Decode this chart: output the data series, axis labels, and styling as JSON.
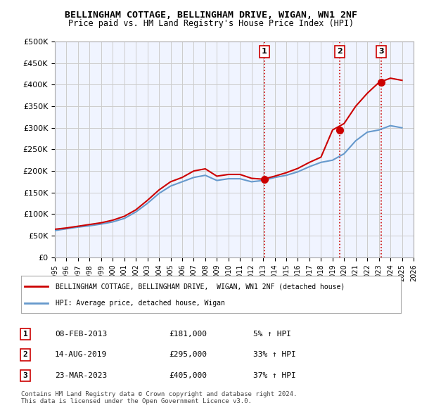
{
  "title": "BELLINGHAM COTTAGE, BELLINGHAM DRIVE, WIGAN, WN1 2NF",
  "subtitle": "Price paid vs. HM Land Registry's House Price Index (HPI)",
  "background_color": "#ffffff",
  "plot_bg_color": "#f0f4ff",
  "grid_color": "#cccccc",
  "ylim": [
    0,
    500000
  ],
  "yticks": [
    0,
    50000,
    100000,
    150000,
    200000,
    250000,
    300000,
    350000,
    400000,
    450000,
    500000
  ],
  "ytick_labels": [
    "£0",
    "£50K",
    "£100K",
    "£150K",
    "£200K",
    "£250K",
    "£300K",
    "£350K",
    "£400K",
    "£450K",
    "£500K"
  ],
  "xmin": 1995,
  "xmax": 2026,
  "sale_dates": [
    2013.1,
    2019.6,
    2023.2
  ],
  "sale_prices": [
    181000,
    295000,
    405000
  ],
  "sale_labels": [
    "1",
    "2",
    "3"
  ],
  "vline_color": "#cc0000",
  "vline_style": "dotted",
  "sale_marker_color": "#cc0000",
  "hpi_line_color": "#6699cc",
  "property_line_color": "#cc0000",
  "legend_label_property": "BELLINGHAM COTTAGE, BELLINGHAM DRIVE,  WIGAN, WN1 2NF (detached house)",
  "legend_label_hpi": "HPI: Average price, detached house, Wigan",
  "table_rows": [
    [
      "1",
      "08-FEB-2013",
      "£181,000",
      "5% ↑ HPI"
    ],
    [
      "2",
      "14-AUG-2019",
      "£295,000",
      "33% ↑ HPI"
    ],
    [
      "3",
      "23-MAR-2023",
      "£405,000",
      "37% ↑ HPI"
    ]
  ],
  "footer": "Contains HM Land Registry data © Crown copyright and database right 2024.\nThis data is licensed under the Open Government Licence v3.0.",
  "hpi_years": [
    1995,
    1996,
    1997,
    1998,
    1999,
    2000,
    2001,
    2002,
    2003,
    2004,
    2005,
    2006,
    2007,
    2008,
    2009,
    2010,
    2011,
    2012,
    2013,
    2014,
    2015,
    2016,
    2017,
    2018,
    2019,
    2020,
    2021,
    2022,
    2023,
    2024,
    2025
  ],
  "hpi_values": [
    62000,
    66000,
    70000,
    73000,
    77000,
    82000,
    90000,
    105000,
    125000,
    148000,
    165000,
    175000,
    185000,
    190000,
    178000,
    182000,
    182000,
    175000,
    178000,
    185000,
    190000,
    198000,
    210000,
    220000,
    225000,
    240000,
    270000,
    290000,
    295000,
    305000,
    300000
  ],
  "prop_years": [
    1995,
    1996,
    1997,
    1998,
    1999,
    2000,
    2001,
    2002,
    2003,
    2004,
    2005,
    2006,
    2007,
    2008,
    2009,
    2010,
    2011,
    2012,
    2013,
    2014,
    2015,
    2016,
    2017,
    2018,
    2019,
    2020,
    2021,
    2022,
    2023,
    2024,
    2025
  ],
  "prop_values": [
    65000,
    68000,
    72000,
    76000,
    80000,
    86000,
    95000,
    110000,
    132000,
    156000,
    175000,
    185000,
    200000,
    205000,
    188000,
    192000,
    192000,
    183000,
    181000,
    188000,
    196000,
    206000,
    220000,
    232000,
    295000,
    310000,
    350000,
    380000,
    405000,
    415000,
    410000
  ]
}
